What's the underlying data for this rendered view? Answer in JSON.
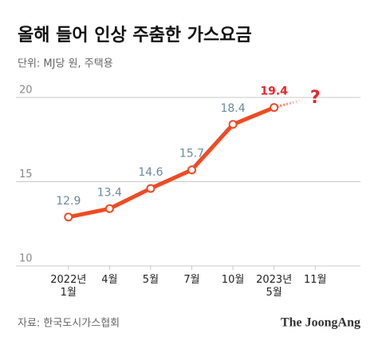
{
  "chart_data": {
    "type": "line",
    "title": "올해 들어 인상 주춤한 가스요금",
    "subtitle": "단위: MJ당 원, 주택용",
    "categories": [
      "2022년\n1월",
      "4월",
      "5월",
      "7월",
      "10월",
      "2023년\n5월",
      "11월"
    ],
    "series": [
      {
        "name": "주택용",
        "color": "#f04a23",
        "values": [
          12.9,
          13.4,
          14.6,
          15.7,
          18.4,
          19.4,
          null
        ]
      }
    ],
    "label_color": "#6b8aa0",
    "highlight_color": "#e8242b",
    "annotation": "?",
    "ylim": [
      10,
      20
    ],
    "yticks": [
      10,
      15,
      20
    ],
    "grid": true,
    "source": "자료: 한국도시가스협회",
    "brand": "The JoongAng"
  }
}
